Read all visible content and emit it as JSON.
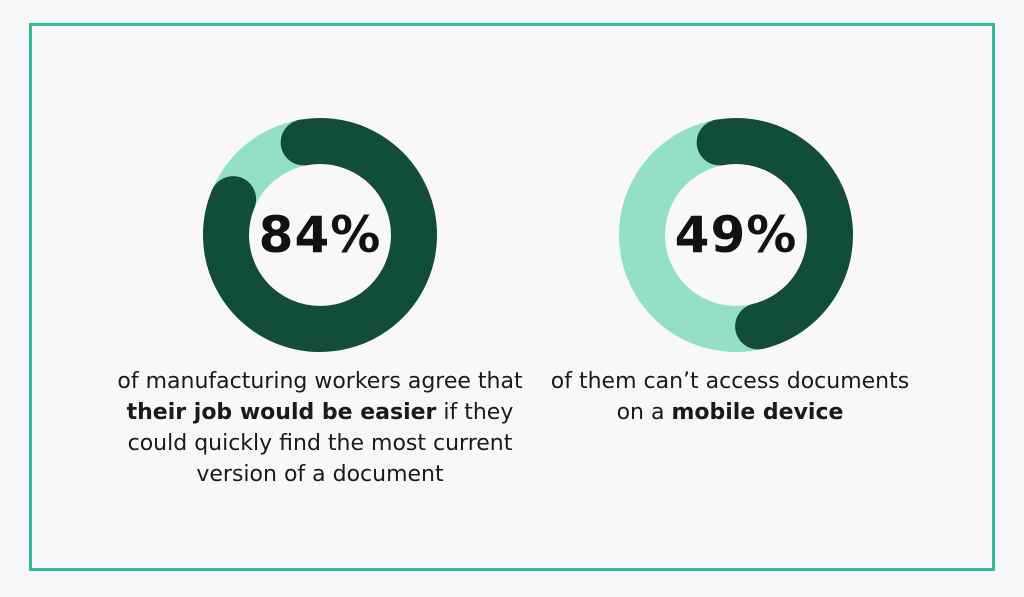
{
  "colors": {
    "border": "#2fbf96",
    "filled": "#114d3a",
    "remaining": "#93dfc8",
    "background": "#f8f8fb"
  },
  "chart_data": [
    {
      "type": "pie",
      "value": 84,
      "label": "84%",
      "caption": [
        {
          "text": "of manufacturing workers agree that ",
          "bold": false
        },
        {
          "text": "their job would be easier",
          "bold": true
        },
        {
          "text": " if they could quickly find the most current version of a document",
          "bold": false
        }
      ]
    },
    {
      "type": "pie",
      "value": 49,
      "label": "49%",
      "caption": [
        {
          "text": "of them can’t access documents on a ",
          "bold": false
        },
        {
          "text": "mobile device",
          "bold": true
        }
      ]
    }
  ]
}
